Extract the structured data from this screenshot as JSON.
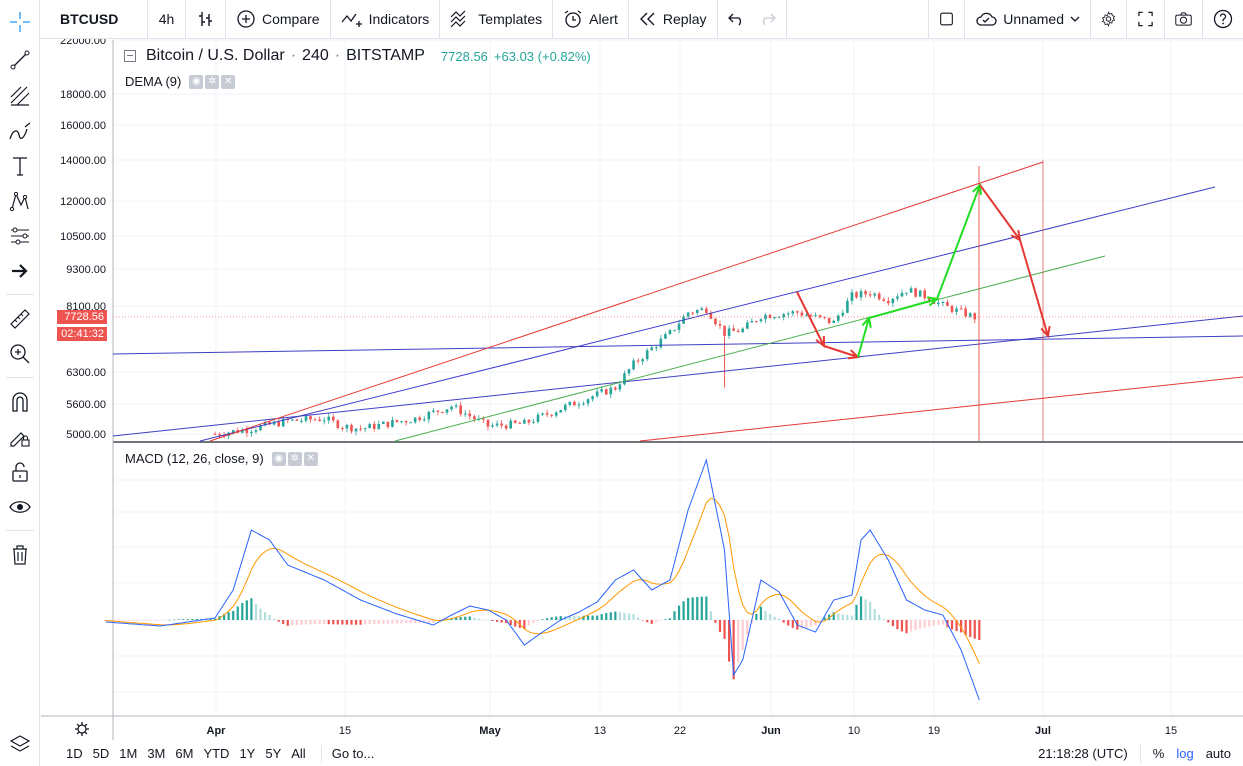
{
  "toolbar": {
    "symbol": "BTCUSD",
    "interval": "4h",
    "compare_label": "Compare",
    "indicators_label": "Indicators",
    "templates_label": "Templates",
    "alert_label": "Alert",
    "replay_label": "Replay",
    "layout_name": "Unnamed",
    "icons": [
      "bar-style-icon",
      "plus-circle-icon",
      "indicators-icon",
      "templates-icon",
      "alarm-icon",
      "replay-icon",
      "undo-icon",
      "redo-icon",
      "square-icon",
      "cloud-icon",
      "chevron-down-icon",
      "gear-icon",
      "fullscreen-icon",
      "camera-icon",
      "help-icon"
    ]
  },
  "left_toolbar": {
    "tools": [
      "crosshair-icon",
      "trend-line-icon",
      "fib-icon",
      "brush-icon",
      "text-icon",
      "pattern-icon",
      "prediction-icon",
      "arrow-icon",
      "ruler-icon",
      "zoom-icon",
      "magnet-icon",
      "lock-draw-icon",
      "lock-icon",
      "eye-icon",
      "trash-icon",
      "layers-icon"
    ]
  },
  "legend": {
    "title": "Bitcoin / U.S. Dollar",
    "interval": "240",
    "exchange": "BITSTAMP",
    "price": "7728.56",
    "change": "+63.03 (+0.82%)"
  },
  "indicators": {
    "dema": "DEMA (9)",
    "macd": "MACD (12, 26, close, 9)"
  },
  "price_tags": {
    "last": "7728.56",
    "countdown": "02:41:32"
  },
  "price_axis": [
    "22000.00",
    "18000.00",
    "16000.00",
    "14000.00",
    "12000.00",
    "10500.00",
    "9300.00",
    "8100.00",
    "6300.00",
    "5600.00",
    "5000.00"
  ],
  "time_axis": [
    "Apr",
    "15",
    "May",
    "13",
    "22",
    "Jun",
    "10",
    "19",
    "Jul",
    "15"
  ],
  "bottom": {
    "ranges": [
      "1D",
      "5D",
      "1M",
      "3M",
      "6M",
      "YTD",
      "1Y",
      "5Y",
      "All"
    ],
    "goto": "Go to...",
    "clock": "21:18:28 (UTC)",
    "percent": "%",
    "log": "log",
    "auto": "auto"
  },
  "colors": {
    "up": "#26a69a",
    "down": "#ef5350",
    "trend_red": "#e53935",
    "trend_blue": "#3f3fc4",
    "trend_green": "#4caf50",
    "arrow_green": "#22dd22",
    "macd_line": "#2962ff",
    "signal_line": "#ff9800",
    "accent": "#2962ff"
  }
}
